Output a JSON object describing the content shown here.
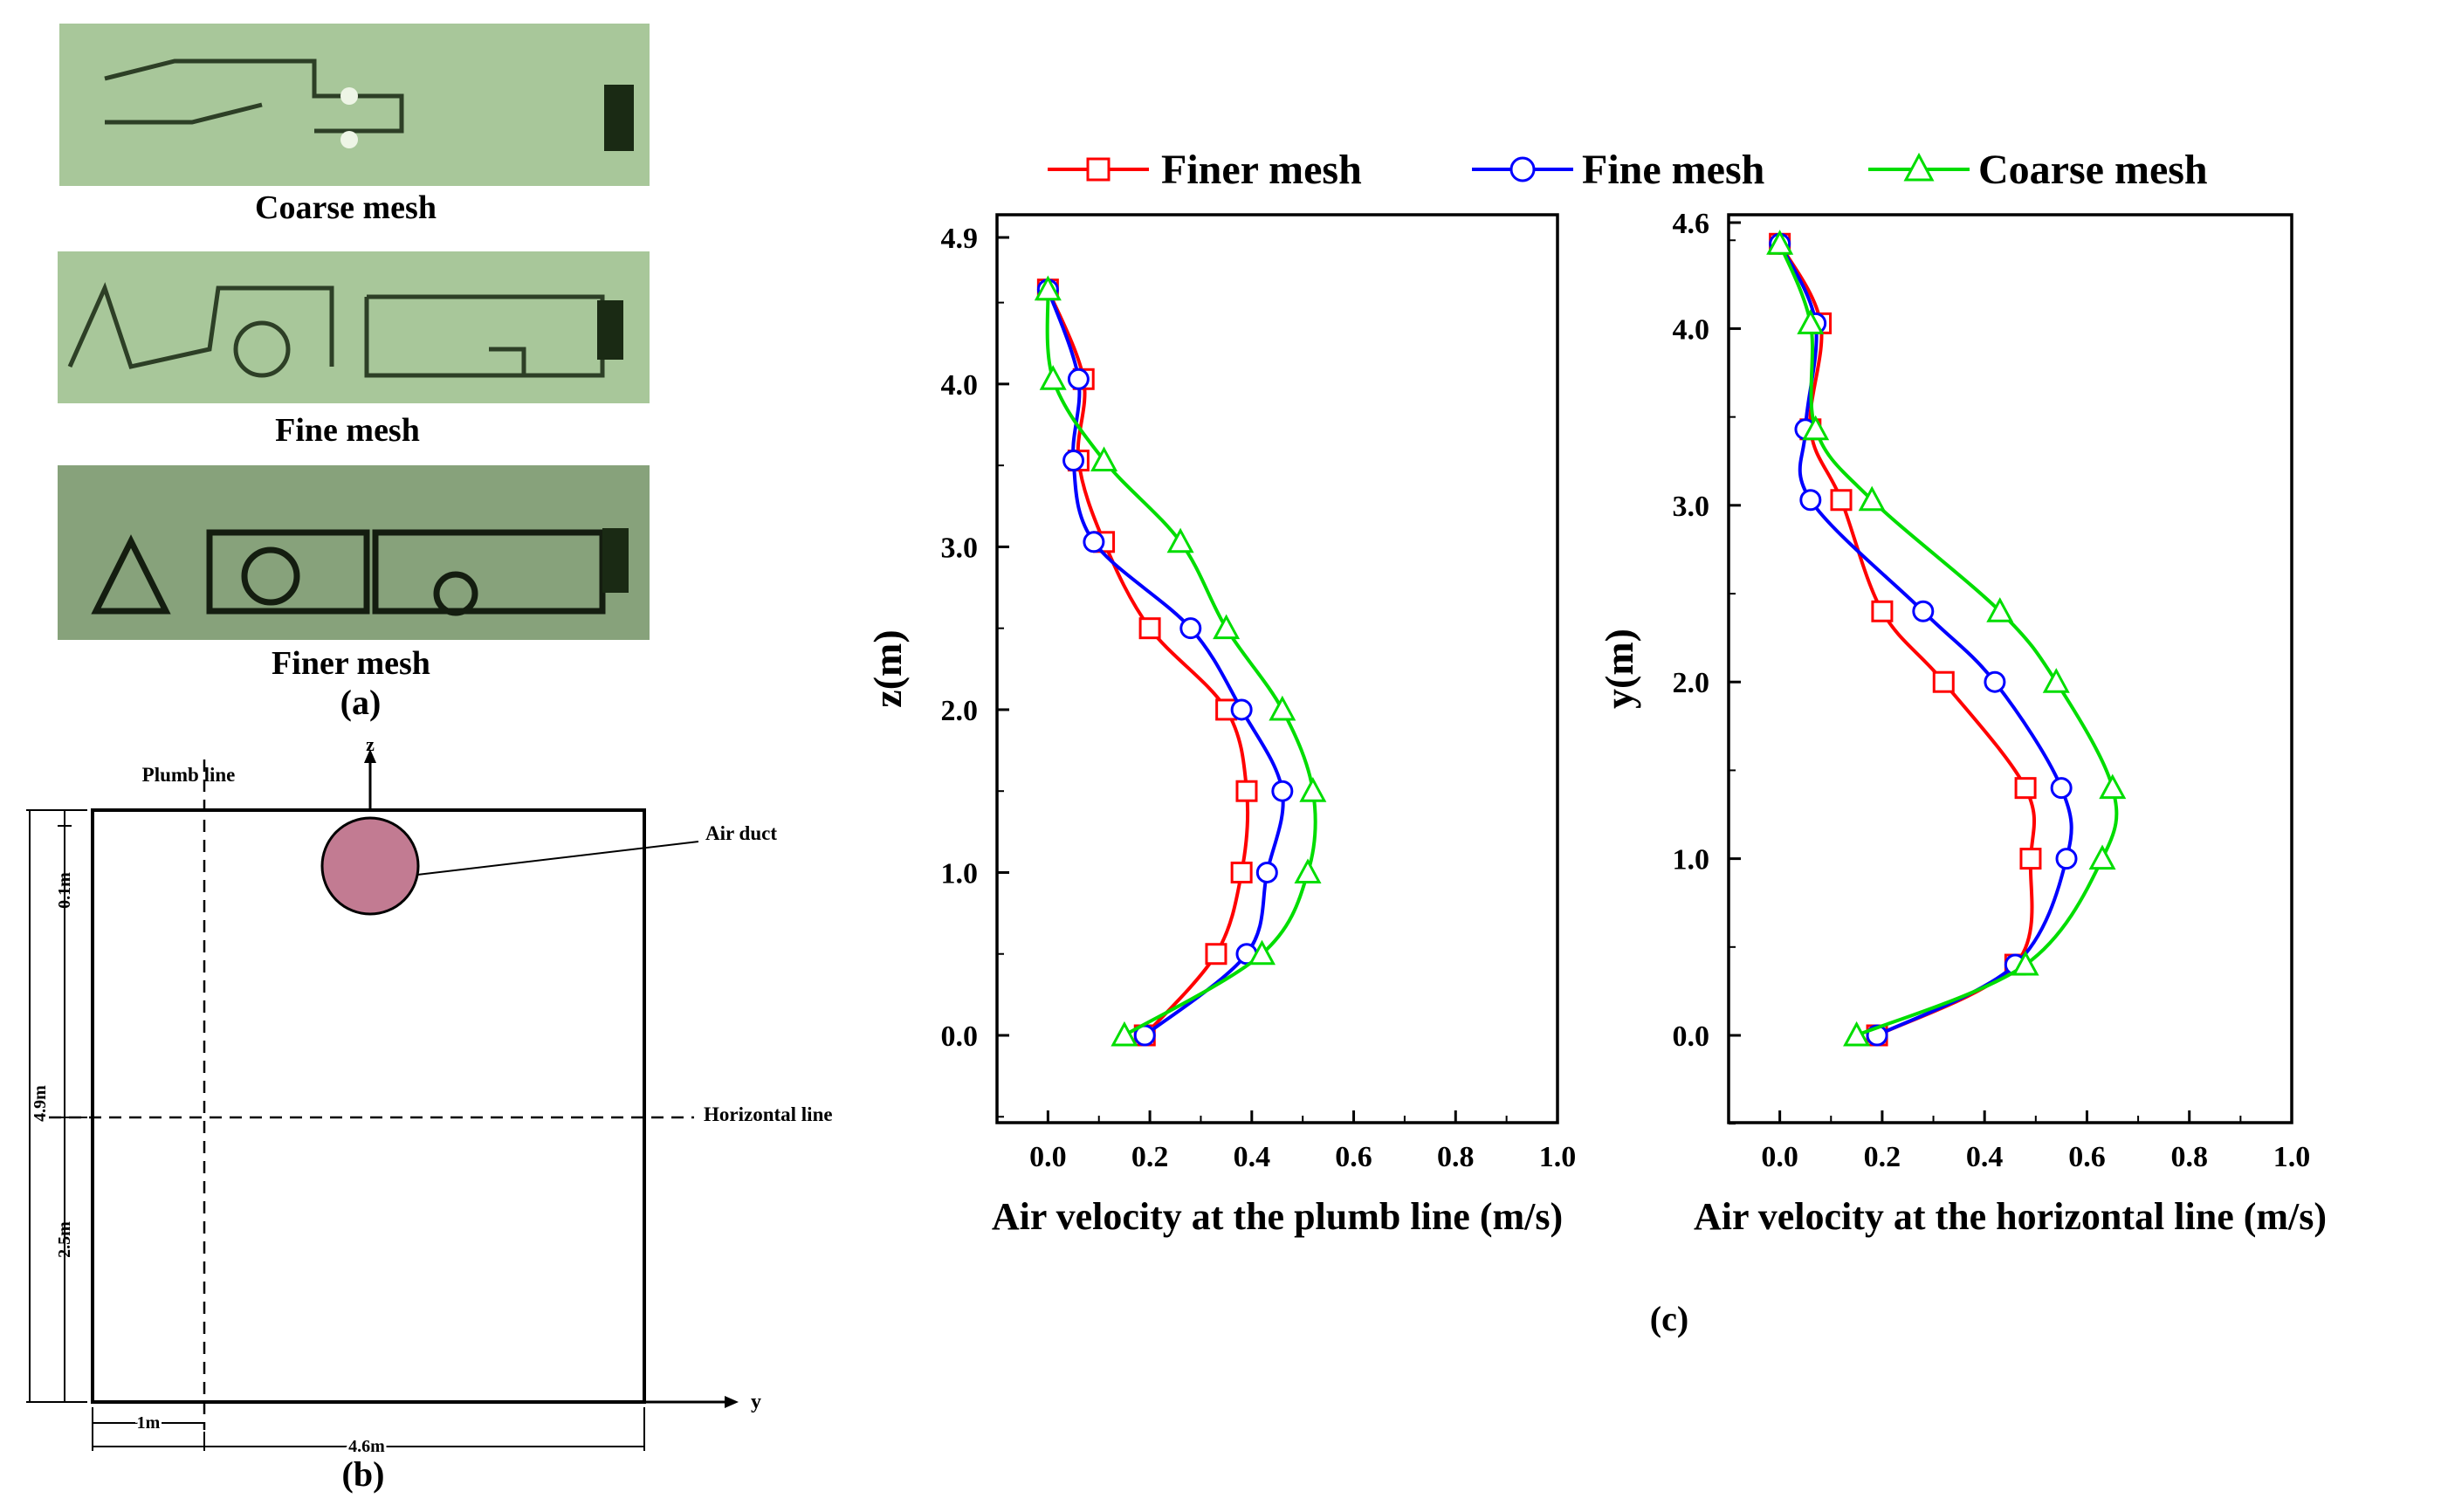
{
  "panel_a": {
    "meshes": [
      {
        "label": "Coarse mesh"
      },
      {
        "label": "Fine mesh"
      },
      {
        "label": "Finer mesh"
      }
    ],
    "caption": "(a)"
  },
  "panel_b": {
    "caption": "(b)",
    "axis_z": "z",
    "axis_y": "y",
    "plumb_line": "Plumb line",
    "horizontal_line": "Horizontal line",
    "air_duct": "Air duct",
    "dim_height": "4.9m",
    "dim_top": "0.1m",
    "dim_lower": "2.5m",
    "dim_plumb": "1m",
    "dim_width": "4.6m",
    "duct_color": "#c27b92"
  },
  "caption_c": "(c)",
  "legend": [
    {
      "name": "Finer mesh",
      "color": "#ff0000",
      "marker": "square"
    },
    {
      "name": "Fine mesh",
      "color": "#0000ff",
      "marker": "circle"
    },
    {
      "name": "Coarse mesh",
      "color": "#00dd00",
      "marker": "triangle"
    }
  ],
  "chart_data": [
    {
      "type": "line",
      "xlabel": "Air velocity at the plumb line (m/s)",
      "ylabel": "z(m)",
      "xlim": [
        -0.1,
        1.0
      ],
      "ylim": [
        -0.5,
        4.9
      ],
      "xticks": [
        "0.0",
        "0.2",
        "0.4",
        "0.6",
        "0.8",
        "1.0"
      ],
      "xtick_values": [
        0,
        0.2,
        0.4,
        0.6,
        0.8,
        1.0
      ],
      "yticks": [
        "0.0",
        "1.0",
        "2.0",
        "3.0",
        "4.0",
        "4.9"
      ],
      "ytick_values": [
        0,
        1,
        2,
        3,
        4,
        4.9
      ],
      "series": [
        {
          "name": "Finer mesh",
          "points": [
            [
              0.19,
              0
            ],
            [
              0.33,
              0.5
            ],
            [
              0.38,
              1.0
            ],
            [
              0.39,
              1.5
            ],
            [
              0.35,
              2.0
            ],
            [
              0.2,
              2.5
            ],
            [
              0.11,
              3.03
            ],
            [
              0.06,
              3.53
            ],
            [
              0.07,
              4.03
            ],
            [
              0.0,
              4.58
            ]
          ]
        },
        {
          "name": "Fine mesh",
          "points": [
            [
              0.19,
              0
            ],
            [
              0.39,
              0.5
            ],
            [
              0.43,
              1.0
            ],
            [
              0.46,
              1.5
            ],
            [
              0.38,
              2.0
            ],
            [
              0.28,
              2.5
            ],
            [
              0.09,
              3.03
            ],
            [
              0.05,
              3.53
            ],
            [
              0.06,
              4.03
            ],
            [
              0.0,
              4.58
            ]
          ]
        },
        {
          "name": "Coarse mesh",
          "points": [
            [
              0.15,
              0
            ],
            [
              0.42,
              0.5
            ],
            [
              0.51,
              1.0
            ],
            [
              0.52,
              1.5
            ],
            [
              0.46,
              2.0
            ],
            [
              0.35,
              2.5
            ],
            [
              0.26,
              3.03
            ],
            [
              0.11,
              3.53
            ],
            [
              0.01,
              4.03
            ],
            [
              0.0,
              4.58
            ]
          ]
        }
      ]
    },
    {
      "type": "line",
      "xlabel": "Air velocity at the horizontal line (m/s)",
      "ylabel": "y(m)",
      "xlim": [
        -0.1,
        1.0
      ],
      "ylim": [
        -0.5,
        4.6
      ],
      "xticks": [
        "0.0",
        "0.2",
        "0.4",
        "0.6",
        "0.8",
        "1.0"
      ],
      "xtick_values": [
        0,
        0.2,
        0.4,
        0.6,
        0.8,
        1.0
      ],
      "yticks": [
        "0.0",
        "1.0",
        "2.0",
        "3.0",
        "4.0",
        "4.6"
      ],
      "ytick_values": [
        0,
        1,
        2,
        3,
        4,
        4.6
      ],
      "series": [
        {
          "name": "Finer mesh",
          "points": [
            [
              0.19,
              0
            ],
            [
              0.46,
              0.4
            ],
            [
              0.49,
              1.0
            ],
            [
              0.48,
              1.4
            ],
            [
              0.32,
              2.0
            ],
            [
              0.2,
              2.4
            ],
            [
              0.12,
              3.03
            ],
            [
              0.06,
              3.43
            ],
            [
              0.08,
              4.03
            ],
            [
              0.0,
              4.48
            ]
          ]
        },
        {
          "name": "Fine mesh",
          "points": [
            [
              0.19,
              0
            ],
            [
              0.46,
              0.4
            ],
            [
              0.56,
              1.0
            ],
            [
              0.55,
              1.4
            ],
            [
              0.42,
              2.0
            ],
            [
              0.28,
              2.4
            ],
            [
              0.06,
              3.03
            ],
            [
              0.05,
              3.43
            ],
            [
              0.07,
              4.03
            ],
            [
              0.0,
              4.48
            ]
          ]
        },
        {
          "name": "Coarse mesh",
          "points": [
            [
              0.15,
              0
            ],
            [
              0.48,
              0.4
            ],
            [
              0.63,
              1.0
            ],
            [
              0.65,
              1.4
            ],
            [
              0.54,
              2.0
            ],
            [
              0.43,
              2.4
            ],
            [
              0.18,
              3.03
            ],
            [
              0.07,
              3.43
            ],
            [
              0.06,
              4.03
            ],
            [
              0.0,
              4.48
            ]
          ]
        }
      ]
    }
  ]
}
